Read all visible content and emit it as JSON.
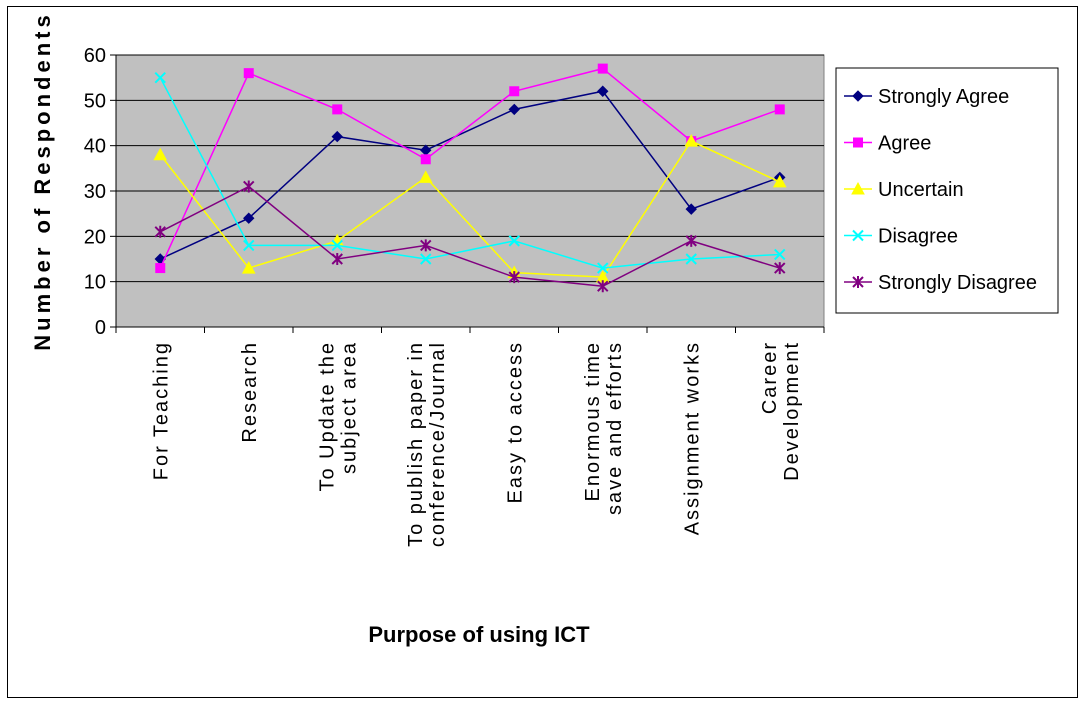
{
  "chart_data": {
    "type": "line",
    "title": "",
    "xlabel": "Purpose of using ICT",
    "ylabel": "Number of Respondents",
    "ylim": [
      0,
      60
    ],
    "yticks": [
      0,
      10,
      20,
      30,
      40,
      50,
      60
    ],
    "grid": "horizontal",
    "legend_position": "right",
    "categories": [
      [
        "For Teaching"
      ],
      [
        "Research"
      ],
      [
        "To Update the",
        "subject area"
      ],
      [
        "To publish paper in",
        "conference/Journal"
      ],
      [
        "Easy to access"
      ],
      [
        "Enormous time",
        "save and efforts"
      ],
      [
        "Assignment works"
      ],
      [
        "Career",
        "Development"
      ]
    ],
    "series": [
      {
        "name": "Strongly Agree",
        "color": "#000080",
        "marker": "diamond",
        "values": [
          15,
          24,
          42,
          39,
          48,
          52,
          26,
          33
        ]
      },
      {
        "name": "Agree",
        "color": "#ff00ff",
        "marker": "square",
        "values": [
          13,
          56,
          48,
          37,
          52,
          57,
          41,
          48
        ]
      },
      {
        "name": "Uncertain",
        "color": "#ffff00",
        "marker": "triangle",
        "values": [
          38,
          13,
          19,
          33,
          12,
          11,
          41,
          32
        ]
      },
      {
        "name": "Disagree",
        "color": "#00ffff",
        "marker": "x",
        "values": [
          55,
          18,
          18,
          15,
          19,
          13,
          15,
          16
        ]
      },
      {
        "name": "Strongly Disagree",
        "color": "#800080",
        "marker": "star",
        "values": [
          21,
          31,
          15,
          18,
          11,
          9,
          19,
          13
        ]
      }
    ]
  }
}
